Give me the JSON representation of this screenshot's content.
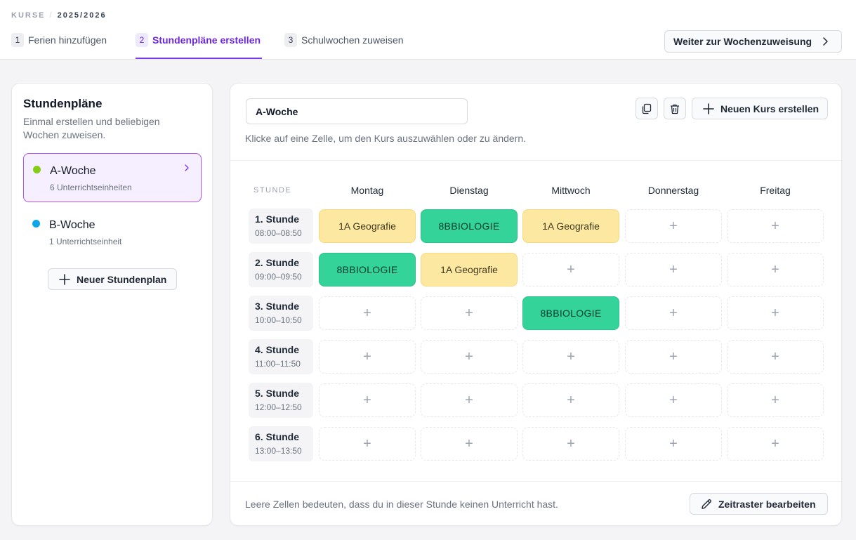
{
  "breadcrumb": {
    "section": "KURSE",
    "separator": "/",
    "year": "2025/2026"
  },
  "steps": [
    {
      "num": "1",
      "label": "Ferien hinzufügen"
    },
    {
      "num": "2",
      "label": "Stundenpläne erstellen"
    },
    {
      "num": "3",
      "label": "Schulwochen zuweisen"
    }
  ],
  "next_button": "Weiter zur Wochenzuweisung",
  "sidebar": {
    "title": "Stundenpläne",
    "description": "Einmal erstellen und beliebigen Wochen zuweisen.",
    "plans": [
      {
        "name": "A-Woche",
        "count": "6 Unterrichtseinheiten",
        "color": "#84cc16"
      },
      {
        "name": "B-Woche",
        "count": "1 Unterrichtseinheit",
        "color": "#0ea5e9"
      }
    ],
    "new_plan_button": "Neuer Stundenplan"
  },
  "editor": {
    "plan_name": "A-Woche",
    "new_course_button": "Neuen Kurs erstellen",
    "hint": "Klicke auf eine Zelle, um den Kurs auszuwählen oder zu ändern.",
    "columns": {
      "period": "STUNDE",
      "days": [
        "Montag",
        "Dienstag",
        "Mittwoch",
        "Donnerstag",
        "Freitag"
      ]
    },
    "rows": [
      {
        "name": "1. Stunde",
        "time": "08:00–08:50",
        "cells": [
          "1A Geografie",
          "8BBIOLOGIE",
          "1A Geografie",
          "",
          ""
        ]
      },
      {
        "name": "2. Stunde",
        "time": "09:00–09:50",
        "cells": [
          "8BBIOLOGIE",
          "1A Geografie",
          "",
          "",
          ""
        ]
      },
      {
        "name": "3. Stunde",
        "time": "10:00–10:50",
        "cells": [
          "",
          "",
          "8BBIOLOGIE",
          "",
          ""
        ]
      },
      {
        "name": "4. Stunde",
        "time": "11:00–11:50",
        "cells": [
          "",
          "",
          "",
          "",
          ""
        ]
      },
      {
        "name": "5. Stunde",
        "time": "12:00–12:50",
        "cells": [
          "",
          "",
          "",
          "",
          ""
        ]
      },
      {
        "name": "6. Stunde",
        "time": "13:00–13:50",
        "cells": [
          "",
          "",
          "",
          "",
          ""
        ]
      }
    ],
    "empty_cell_symbol": "+",
    "footer_text": "Leere Zellen bedeuten, dass du in dieser Stunde keinen Unterricht hast.",
    "edit_button": "Zeitraster bearbeiten"
  },
  "colors": {
    "accent": "#7c3aed",
    "geografie": "#fde8a1",
    "biologie": "#34d399"
  }
}
